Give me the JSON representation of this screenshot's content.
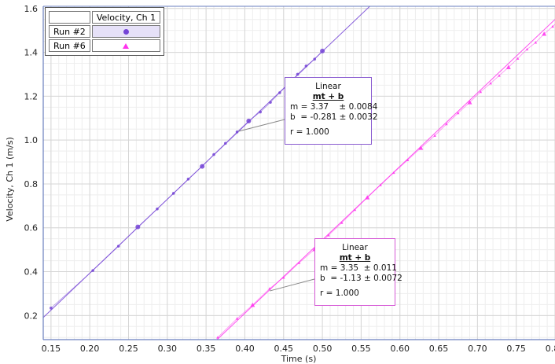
{
  "legend": {
    "header": "Velocity, Ch 1",
    "rows": [
      {
        "label": "Run #2",
        "marker": "circle",
        "color": "#7444d6",
        "selected": true
      },
      {
        "label": "Run #6",
        "marker": "triangle",
        "color": "#ff33ee",
        "selected": false
      }
    ]
  },
  "fits": [
    {
      "title": "Linear",
      "equation": "mt + b",
      "m_line": "m = 3.37    ± 0.0084",
      "b_line": "b  = -0.281 ± 0.0032",
      "r_line": "r = 1.000",
      "color": "#8a5cd0"
    },
    {
      "title": "Linear",
      "equation": "mt + b",
      "m_line": "m = 3.35  ± 0.011",
      "b_line": "b  = -1.13 ± 0.0072",
      "r_line": "r = 1.000",
      "color": "#d65ad6"
    }
  ],
  "chart_data": {
    "type": "scatter",
    "xlabel": "Time (s)",
    "ylabel": "Velocity, Ch 1 (m/s)",
    "xlim": [
      0.14,
      0.8
    ],
    "ylim": [
      0.09,
      1.61
    ],
    "xticks": [
      "0.15",
      "0.20",
      "0.25",
      "0.30",
      "0.35",
      "0.40",
      "0.45",
      "0.50",
      "0.55",
      "0.60",
      "0.65",
      "0.70",
      "0.75",
      "0.80"
    ],
    "yticks": [
      "0.2",
      "0.4",
      "0.6",
      "0.8",
      "1.0",
      "1.2",
      "1.4",
      "1.6"
    ],
    "grid": true,
    "series": [
      {
        "name": "Run #2",
        "color": "#7444d6",
        "fit": {
          "m": 3.37,
          "b": -0.281
        },
        "x": [
          0.15,
          0.204,
          0.237,
          0.262,
          0.287,
          0.308,
          0.327,
          0.345,
          0.36,
          0.375,
          0.39,
          0.405,
          0.42,
          0.433,
          0.445,
          0.457,
          0.468,
          0.479,
          0.49,
          0.5
        ],
        "y": [
          0.234,
          0.405,
          0.516,
          0.604,
          0.686,
          0.757,
          0.822,
          0.88,
          0.934,
          0.985,
          1.037,
          1.087,
          1.128,
          1.172,
          1.216,
          1.258,
          1.3,
          1.338,
          1.369,
          1.406
        ]
      },
      {
        "name": "Run #6",
        "color": "#ff33ee",
        "fit": {
          "m": 3.35,
          "b": -1.13
        },
        "x": [
          0.365,
          0.39,
          0.41,
          0.432,
          0.45,
          0.47,
          0.49,
          0.508,
          0.525,
          0.542,
          0.558,
          0.575,
          0.592,
          0.61,
          0.627,
          0.645,
          0.66,
          0.675,
          0.69,
          0.704,
          0.717,
          0.728,
          0.74,
          0.752,
          0.764,
          0.775,
          0.786,
          0.797,
          0.806
        ],
        "y": [
          0.1,
          0.186,
          0.248,
          0.323,
          0.373,
          0.44,
          0.502,
          0.566,
          0.623,
          0.682,
          0.738,
          0.795,
          0.851,
          0.909,
          0.964,
          1.02,
          1.073,
          1.123,
          1.172,
          1.22,
          1.259,
          1.294,
          1.332,
          1.372,
          1.414,
          1.445,
          1.484,
          1.518,
          1.547
        ]
      }
    ]
  }
}
